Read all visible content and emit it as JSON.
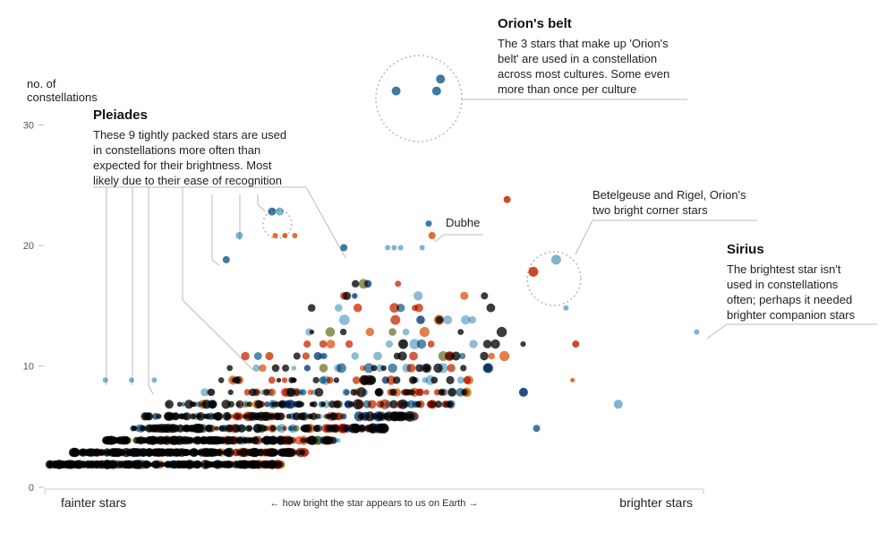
{
  "chart_data": {
    "type": "scatter",
    "ylabel": [
      "no. of",
      "constellations"
    ],
    "xlabel": "← how bright the star appears to us on Earth →",
    "x_left_label": "fainter stars",
    "x_right_label": "brighter stars",
    "ylim": [
      0,
      30
    ],
    "xlim": [
      0,
      100
    ],
    "yticks": [
      0,
      10,
      20,
      30
    ],
    "colors": {
      "dark": "#111111",
      "blue": "#2f6f98",
      "lightblue": "#74aecd",
      "navy": "#123e7a",
      "red": "#c93a14",
      "orange": "#e0621e",
      "gold": "#c9a227",
      "olive": "#77803a",
      "pale": "#a8d0e6"
    },
    "highlight_points": [
      {
        "x": 9,
        "y": 8,
        "color": "lightblue",
        "r": 3
      },
      {
        "x": 13,
        "y": 8,
        "color": "lightblue",
        "r": 3
      },
      {
        "x": 16.5,
        "y": 8,
        "color": "lightblue",
        "r": 3
      },
      {
        "x": 27.5,
        "y": 18,
        "color": "blue",
        "r": 4
      },
      {
        "x": 29.5,
        "y": 20,
        "color": "lightblue",
        "r": 4
      },
      {
        "x": 34.5,
        "y": 22,
        "color": "blue",
        "r": 4.5
      },
      {
        "x": 35.7,
        "y": 22,
        "color": "lightblue",
        "r": 4.5
      },
      {
        "x": 35,
        "y": 20,
        "color": "orange",
        "r": 3
      },
      {
        "x": 36.5,
        "y": 20,
        "color": "orange",
        "r": 3
      },
      {
        "x": 38,
        "y": 20,
        "color": "orange",
        "r": 3
      },
      {
        "x": 45.5,
        "y": 19,
        "color": "blue",
        "r": 4
      },
      {
        "x": 52.2,
        "y": 19,
        "color": "lightblue",
        "r": 3
      },
      {
        "x": 53.2,
        "y": 19,
        "color": "lightblue",
        "r": 3
      },
      {
        "x": 54.2,
        "y": 19,
        "color": "lightblue",
        "r": 3
      },
      {
        "x": 57.5,
        "y": 19,
        "color": "lightblue",
        "r": 3
      },
      {
        "x": 58.5,
        "y": 21,
        "color": "blue",
        "r": 3.5
      },
      {
        "x": 59,
        "y": 20,
        "color": "orange",
        "r": 4
      },
      {
        "x": 70.5,
        "y": 23,
        "color": "red",
        "r": 4
      },
      {
        "x": 53.5,
        "y": 32,
        "color": "blue",
        "r": 5
      },
      {
        "x": 59.7,
        "y": 32,
        "color": "blue",
        "r": 5
      },
      {
        "x": 60.3,
        "y": 33,
        "color": "blue",
        "r": 5
      },
      {
        "x": 74.5,
        "y": 17,
        "color": "red",
        "r": 5.5
      },
      {
        "x": 78,
        "y": 18,
        "color": "lightblue",
        "r": 5.5
      },
      {
        "x": 99.5,
        "y": 12,
        "color": "lightblue",
        "r": 3
      },
      {
        "x": 87.5,
        "y": 6,
        "color": "lightblue",
        "r": 5
      },
      {
        "x": 75,
        "y": 4,
        "color": "blue",
        "r": 4
      },
      {
        "x": 73,
        "y": 7,
        "color": "navy",
        "r": 5
      },
      {
        "x": 80.5,
        "y": 8,
        "color": "orange",
        "r": 2.5
      },
      {
        "x": 81,
        "y": 11,
        "color": "red",
        "r": 4
      },
      {
        "x": 79.5,
        "y": 14,
        "color": "lightblue",
        "r": 3
      }
    ]
  },
  "annotations": {
    "orion": {
      "title": "Orion's belt",
      "lines": [
        "The 3 stars that make up 'Orion's",
        "belt' are used in a constellation",
        "across most cultures. Some even",
        "more than once per culture"
      ]
    },
    "pleiades": {
      "title": "Pleiades",
      "lines": [
        "These 9 tightly packed stars are used",
        "in constellations more often than",
        "expected for their brightness. Most",
        "likely due to their ease of recognition"
      ]
    },
    "dubhe": {
      "label": "Dubhe"
    },
    "betelgeuse": {
      "lines": [
        "Betelgeuse and Rigel, Orion's",
        "two bright corner stars"
      ]
    },
    "sirius": {
      "title": "Sirius",
      "lines": [
        "The brightest star isn't",
        "used in constellations",
        "often; perhaps it needed",
        "brighter companion stars"
      ]
    }
  }
}
